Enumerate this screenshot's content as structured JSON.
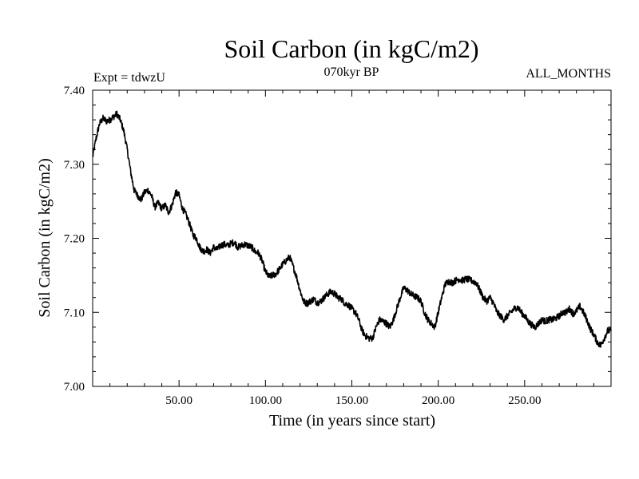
{
  "chart_data": {
    "type": "line",
    "title": "Soil Carbon (in kgC/m2)",
    "subtitle": "070kyr BP",
    "left_label": "Expt = tdwzU",
    "right_label": "ALL_MONTHS",
    "xlabel": "Time (in years since start)",
    "ylabel": "Soil Carbon (in kgC/m2)",
    "xlim": [
      0,
      300
    ],
    "ylim": [
      7.0,
      7.4
    ],
    "x_ticks": [
      {
        "value": 50,
        "label": "50.00"
      },
      {
        "value": 100,
        "label": "100.00"
      },
      {
        "value": 150,
        "label": "150.00"
      },
      {
        "value": 200,
        "label": "200.00"
      },
      {
        "value": 250,
        "label": "250.00"
      }
    ],
    "y_ticks": [
      {
        "value": 7.0,
        "label": "7.00"
      },
      {
        "value": 7.1,
        "label": "7.10"
      },
      {
        "value": 7.2,
        "label": "7.20"
      },
      {
        "value": 7.3,
        "label": "7.30"
      },
      {
        "value": 7.4,
        "label": "7.40"
      }
    ],
    "series": [
      {
        "name": "Soil Carbon",
        "color": "#000000",
        "x": [
          0,
          2,
          4,
          6,
          8,
          10,
          12,
          14,
          16,
          18,
          20,
          22,
          24,
          26,
          28,
          30,
          32,
          34,
          36,
          38,
          40,
          42,
          44,
          46,
          48,
          50,
          52,
          54,
          56,
          58,
          60,
          62,
          64,
          66,
          68,
          70,
          72,
          74,
          76,
          78,
          80,
          82,
          84,
          86,
          88,
          90,
          92,
          94,
          96,
          98,
          100,
          102,
          104,
          106,
          108,
          110,
          112,
          114,
          116,
          118,
          120,
          122,
          124,
          126,
          128,
          130,
          132,
          134,
          136,
          138,
          140,
          142,
          144,
          146,
          148,
          150,
          152,
          154,
          156,
          158,
          160,
          162,
          164,
          166,
          168,
          170,
          172,
          174,
          176,
          178,
          180,
          182,
          184,
          186,
          188,
          190,
          192,
          194,
          196,
          198,
          200,
          202,
          204,
          206,
          208,
          210,
          212,
          214,
          216,
          218,
          220,
          222,
          224,
          226,
          228,
          230,
          232,
          234,
          236,
          238,
          240,
          242,
          244,
          246,
          248,
          250,
          252,
          254,
          256,
          258,
          260,
          262,
          264,
          266,
          268,
          270,
          272,
          274,
          276,
          278,
          280,
          282,
          284,
          286,
          288,
          290,
          292,
          294,
          296,
          298,
          300
        ],
        "y": [
          7.31,
          7.335,
          7.355,
          7.362,
          7.358,
          7.36,
          7.364,
          7.368,
          7.36,
          7.345,
          7.32,
          7.29,
          7.265,
          7.258,
          7.252,
          7.262,
          7.265,
          7.258,
          7.242,
          7.248,
          7.24,
          7.245,
          7.235,
          7.245,
          7.262,
          7.258,
          7.24,
          7.232,
          7.22,
          7.205,
          7.2,
          7.188,
          7.182,
          7.185,
          7.18,
          7.188,
          7.185,
          7.19,
          7.192,
          7.19,
          7.193,
          7.195,
          7.188,
          7.19,
          7.192,
          7.19,
          7.188,
          7.182,
          7.18,
          7.17,
          7.155,
          7.148,
          7.15,
          7.152,
          7.158,
          7.165,
          7.17,
          7.175,
          7.162,
          7.148,
          7.13,
          7.115,
          7.112,
          7.115,
          7.118,
          7.113,
          7.115,
          7.12,
          7.125,
          7.128,
          7.125,
          7.12,
          7.118,
          7.112,
          7.11,
          7.105,
          7.1,
          7.09,
          7.075,
          7.068,
          7.065,
          7.065,
          7.08,
          7.09,
          7.088,
          7.085,
          7.08,
          7.09,
          7.105,
          7.12,
          7.133,
          7.13,
          7.125,
          7.122,
          7.12,
          7.115,
          7.1,
          7.09,
          7.085,
          7.08,
          7.1,
          7.12,
          7.138,
          7.142,
          7.14,
          7.143,
          7.145,
          7.143,
          7.145,
          7.144,
          7.142,
          7.14,
          7.13,
          7.12,
          7.115,
          7.12,
          7.112,
          7.1,
          7.095,
          7.09,
          7.095,
          7.1,
          7.105,
          7.107,
          7.1,
          7.095,
          7.088,
          7.083,
          7.08,
          7.085,
          7.09,
          7.088,
          7.09,
          7.09,
          7.092,
          7.095,
          7.1,
          7.1,
          7.105,
          7.098,
          7.102,
          7.108,
          7.1,
          7.09,
          7.078,
          7.07,
          7.06,
          7.055,
          7.065,
          7.075,
          7.075
        ]
      }
    ]
  }
}
